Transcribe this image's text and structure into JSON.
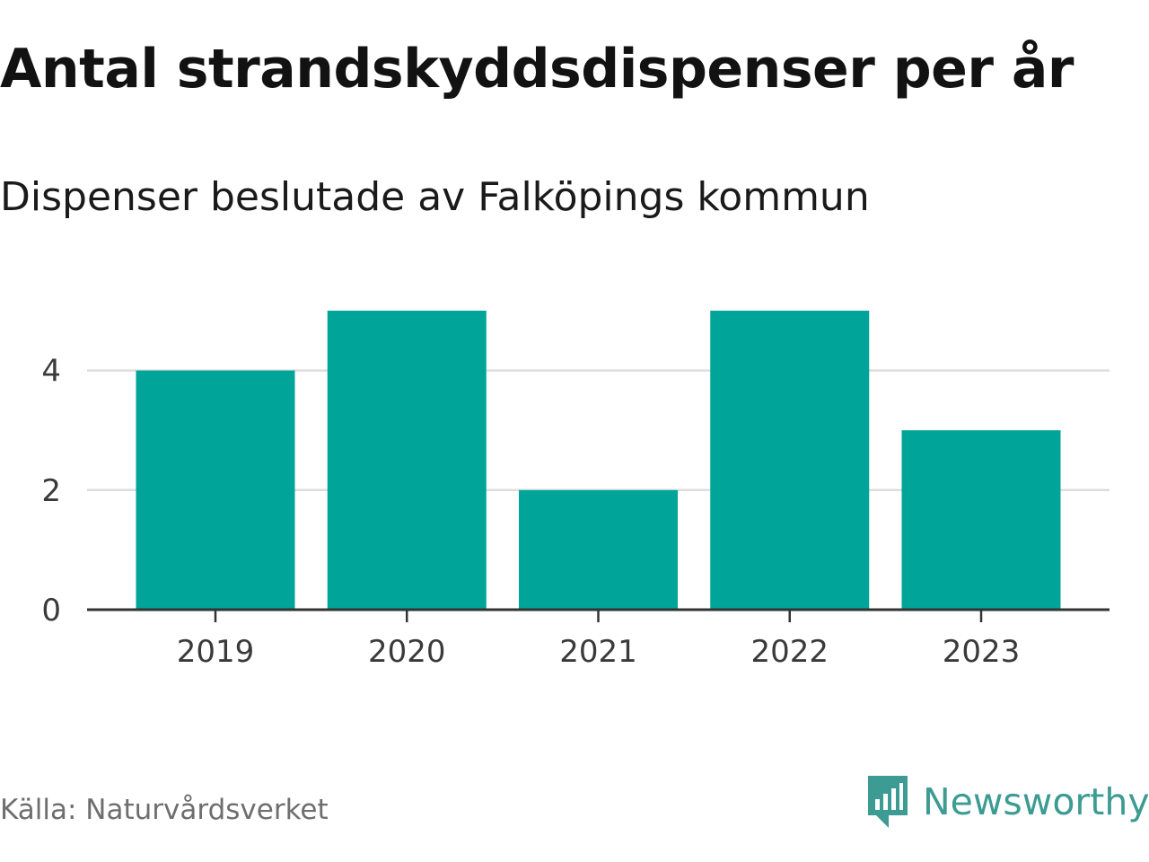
{
  "header": {
    "title": "Antal strandskyddsdispenser per år",
    "subtitle": "Dispenser beslutade av Falköpings kommun"
  },
  "footer": {
    "source": "Källa: Naturvårdsverket",
    "brand": "Newsworthy",
    "brand_icon": "bar-chart-speech-bubble-icon"
  },
  "colors": {
    "bar": "#00a499",
    "grid": "#dddddd",
    "axis": "#333333",
    "brand": "#3c9b92"
  },
  "chart_data": {
    "type": "bar",
    "title": "Antal strandskyddsdispenser per år",
    "subtitle": "Dispenser beslutade av Falköpings kommun",
    "categories": [
      "2019",
      "2020",
      "2021",
      "2022",
      "2023"
    ],
    "values": [
      4,
      5,
      2,
      5,
      3
    ],
    "xlabel": "",
    "ylabel": "",
    "ylim": [
      0,
      5
    ],
    "yticks": [
      0,
      2,
      4
    ],
    "grid": true,
    "legend": "none"
  }
}
